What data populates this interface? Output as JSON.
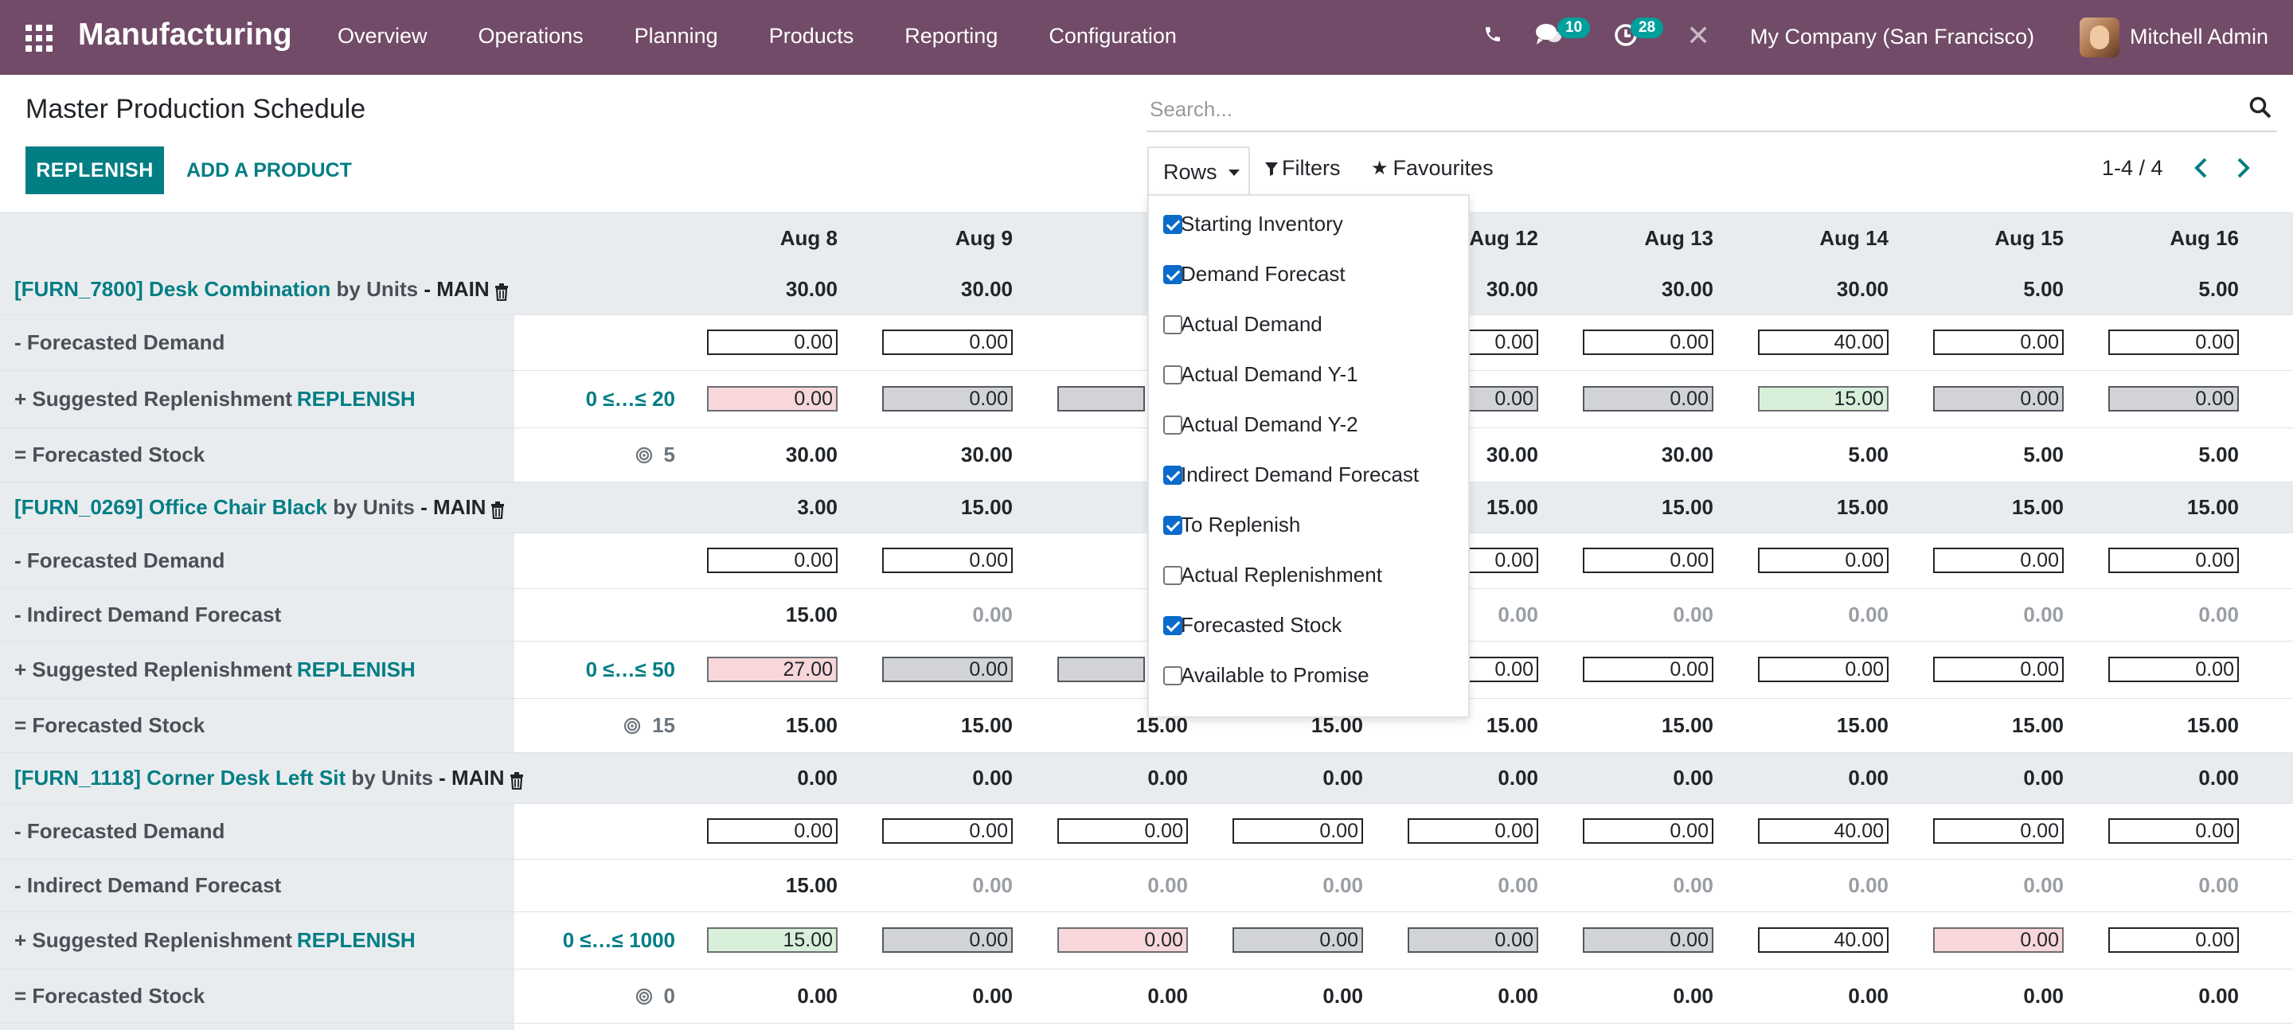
{
  "navbar": {
    "app_name": "Manufacturing",
    "menu": [
      "Overview",
      "Operations",
      "Planning",
      "Products",
      "Reporting",
      "Configuration"
    ],
    "messages_count": "10",
    "activities_count": "28",
    "company": "My Company (San Francisco)",
    "user": "Mitchell Admin"
  },
  "page": {
    "title": "Master Production Schedule",
    "search_placeholder": "Search...",
    "replenish_button": "REPLENISH",
    "add_product_button": "ADD A PRODUCT",
    "rows_button": "Rows",
    "filters_button": "Filters",
    "favourites_button": "Favourites",
    "pager": "1-4 / 4"
  },
  "rows_dropdown": [
    {
      "label": "Starting Inventory",
      "checked": true
    },
    {
      "label": "Demand Forecast",
      "checked": true
    },
    {
      "label": "Actual Demand",
      "checked": false
    },
    {
      "label": "Actual Demand Y-1",
      "checked": false
    },
    {
      "label": "Actual Demand Y-2",
      "checked": false
    },
    {
      "label": "Indirect Demand Forecast",
      "checked": true
    },
    {
      "label": "To Replenish",
      "checked": true
    },
    {
      "label": "Actual Replenishment",
      "checked": false
    },
    {
      "label": "Forecasted Stock",
      "checked": true
    },
    {
      "label": "Available to Promise",
      "checked": false
    }
  ],
  "grid": {
    "dates": [
      "Aug 8",
      "Aug 9",
      "Au",
      "",
      "Aug 12",
      "Aug 13",
      "Aug 14",
      "Aug 15",
      "Aug 16"
    ],
    "replenish_link": "REPLENISH",
    "products": [
      {
        "name": "[FURN_7800] Desk Combination",
        "by": "by Units",
        "loc": "- MAIN",
        "starting": [
          "30.00",
          "30.00",
          "3",
          "",
          "30.00",
          "30.00",
          "30.00",
          "5.00",
          "5.00"
        ],
        "forecasted_demand": [
          "0.00",
          "0.00",
          "",
          "",
          "0.00",
          "0.00",
          "40.00",
          "0.00",
          "0.00"
        ],
        "indirect": null,
        "replenish_range": "0 ≤…≤ 20",
        "replenish": [
          "0.00",
          "0.00",
          "",
          "",
          "0.00",
          "0.00",
          "15.00",
          "0.00",
          "0.00"
        ],
        "replenish_state": [
          "red",
          "grey",
          "grey",
          "",
          "grey",
          "grey",
          "green",
          "grey",
          "grey"
        ],
        "safety_stock": "5",
        "forecasted_stock": [
          "30.00",
          "30.00",
          "3",
          "",
          "30.00",
          "30.00",
          "5.00",
          "5.00",
          "5.00"
        ]
      },
      {
        "name": "[FURN_0269] Office Chair Black",
        "by": "by Units",
        "loc": "- MAIN",
        "starting": [
          "3.00",
          "15.00",
          "1",
          "",
          "15.00",
          "15.00",
          "15.00",
          "15.00",
          "15.00"
        ],
        "forecasted_demand": [
          "0.00",
          "0.00",
          "",
          "",
          "0.00",
          "0.00",
          "0.00",
          "0.00",
          "0.00"
        ],
        "indirect": [
          "15.00",
          "0.00",
          "",
          "",
          "0.00",
          "0.00",
          "0.00",
          "0.00",
          "0.00"
        ],
        "replenish_range": "0 ≤…≤ 50",
        "replenish": [
          "27.00",
          "0.00",
          "",
          "",
          "0.00",
          "0.00",
          "0.00",
          "0.00",
          "0.00"
        ],
        "replenish_state": [
          "red",
          "grey",
          "grey",
          "",
          "white",
          "white",
          "white",
          "white",
          "white"
        ],
        "safety_stock": "15",
        "forecasted_stock": [
          "15.00",
          "15.00",
          "15.00",
          "15.00",
          "15.00",
          "15.00",
          "15.00",
          "15.00",
          "15.00"
        ]
      },
      {
        "name": "[FURN_1118] Corner Desk Left Sit",
        "by": "by Units",
        "loc": "- MAIN",
        "starting": [
          "0.00",
          "0.00",
          "0.00",
          "0.00",
          "0.00",
          "0.00",
          "0.00",
          "0.00",
          "0.00"
        ],
        "forecasted_demand": [
          "0.00",
          "0.00",
          "0.00",
          "0.00",
          "0.00",
          "0.00",
          "40.00",
          "0.00",
          "0.00"
        ],
        "indirect": [
          "15.00",
          "0.00",
          "0.00",
          "0.00",
          "0.00",
          "0.00",
          "0.00",
          "0.00",
          "0.00"
        ],
        "replenish_range": "0 ≤…≤ 1000",
        "replenish": [
          "15.00",
          "0.00",
          "0.00",
          "0.00",
          "0.00",
          "0.00",
          "40.00",
          "0.00",
          "0.00"
        ],
        "replenish_state": [
          "green",
          "grey",
          "red",
          "grey",
          "grey",
          "grey",
          "white",
          "red",
          "white"
        ],
        "safety_stock": "0",
        "forecasted_stock": [
          "0.00",
          "0.00",
          "0.00",
          "0.00",
          "0.00",
          "0.00",
          "0.00",
          "0.00",
          "0.00"
        ]
      }
    ],
    "row_labels": {
      "forecasted_demand": "- Forecasted Demand",
      "indirect": "- Indirect Demand Forecast",
      "replenish": "+ Suggested Replenishment",
      "forecasted_stock": "= Forecasted Stock"
    },
    "colors": {
      "accent": "#017e84",
      "navbar": "#714b67"
    }
  }
}
